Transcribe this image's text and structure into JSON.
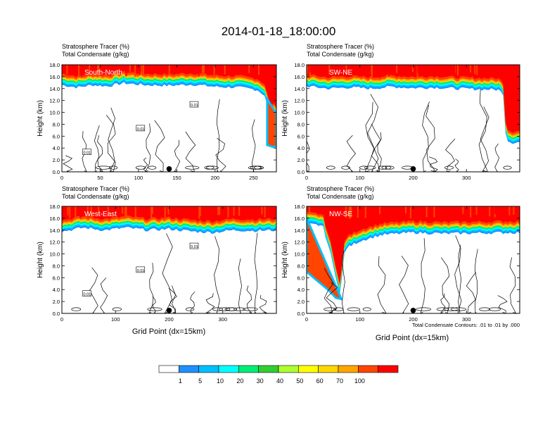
{
  "title": "2014-01-18_18:00:00",
  "field_label_1": "Stratosphere Tracer   (%)",
  "field_label_2": "Total Condensate   (g/kg)",
  "xlabel": "Grid Point (dx=15km)",
  "ylabel": "Height (km)",
  "contour_note": "Total Condensate Contours: .01 to .01 by .000",
  "colorbar": {
    "labels": [
      "1",
      "5",
      "10",
      "20",
      "30",
      "40",
      "50",
      "60",
      "70",
      "100"
    ],
    "colors": [
      "#ffffff",
      "#1e90ff",
      "#00bfff",
      "#00ffff",
      "#00ee76",
      "#32cd32",
      "#adff2f",
      "#ffff00",
      "#ffd700",
      "#ffa500",
      "#ff4500",
      "#ff0000"
    ]
  },
  "chart_data": [
    {
      "type": "heatmap",
      "panel_label": "South-North",
      "xlim": [
        0,
        280
      ],
      "ylim": [
        0,
        18
      ],
      "xticks": [
        0,
        50,
        100,
        150,
        200,
        250
      ],
      "yticks": [
        "0.0",
        "2.0",
        "4.0",
        "6.0",
        "8.0",
        "10.0",
        "12.0",
        "14.0",
        "16.0",
        "18.0"
      ],
      "marker_x": 140,
      "contour_labels": [
        "0.01",
        "0.01",
        "0.01"
      ],
      "tropopause_km": [
        [
          0,
          15.6
        ],
        [
          20,
          15.2
        ],
        [
          40,
          15.6
        ],
        [
          60,
          15.4
        ],
        [
          80,
          15.9
        ],
        [
          110,
          15.6
        ],
        [
          140,
          15.5
        ],
        [
          170,
          15.7
        ],
        [
          200,
          15.3
        ],
        [
          230,
          15.2
        ],
        [
          255,
          14.8
        ],
        [
          265,
          13.8
        ],
        [
          270,
          11.2
        ],
        [
          273,
          10.5
        ],
        [
          278,
          10.4
        ],
        [
          280,
          10.3
        ]
      ],
      "intrusion": [
        [
          268,
          10.5
        ],
        [
          268,
          4.5
        ],
        [
          275,
          4.2
        ],
        [
          280,
          4.3
        ]
      ]
    },
    {
      "type": "heatmap",
      "panel_label": "SW-NE",
      "xlim": [
        0,
        400
      ],
      "ylim": [
        0,
        18
      ],
      "xticks": [
        0,
        100,
        200,
        300
      ],
      "yticks": [
        "0.0",
        "2.0",
        "4.0",
        "6.0",
        "8.0",
        "10.0",
        "12.0",
        "14.0",
        "16.0",
        "18.0"
      ],
      "marker_x": 200,
      "contour_labels": [],
      "tropopause_km": [
        [
          0,
          15.4
        ],
        [
          40,
          15.0
        ],
        [
          80,
          15.2
        ],
        [
          120,
          15.0
        ],
        [
          160,
          15.3
        ],
        [
          200,
          15.1
        ],
        [
          240,
          15.2
        ],
        [
          280,
          15.0
        ],
        [
          320,
          14.9
        ],
        [
          360,
          14.8
        ],
        [
          370,
          14.0
        ],
        [
          372,
          10.0
        ],
        [
          374,
          6.5
        ],
        [
          385,
          5.9
        ],
        [
          400,
          6.0
        ]
      ],
      "intrusion": []
    },
    {
      "type": "heatmap",
      "panel_label": "West-East",
      "xlim": [
        0,
        400
      ],
      "ylim": [
        0,
        18
      ],
      "xticks": [
        0,
        100,
        200,
        300
      ],
      "yticks": [
        "0.0",
        "2.0",
        "4.0",
        "6.0",
        "8.0",
        "10.0",
        "12.0",
        "14.0",
        "16.0",
        "18.0"
      ],
      "marker_x": 200,
      "contour_labels": [
        "0.01",
        "0.01",
        "0.01"
      ],
      "tropopause_km": [
        [
          0,
          14.8
        ],
        [
          40,
          15.4
        ],
        [
          80,
          15.0
        ],
        [
          120,
          15.4
        ],
        [
          160,
          15.0
        ],
        [
          200,
          15.2
        ],
        [
          240,
          14.8
        ],
        [
          280,
          14.6
        ],
        [
          320,
          15.0
        ],
        [
          360,
          14.9
        ],
        [
          400,
          15.0
        ]
      ],
      "intrusion": []
    },
    {
      "type": "heatmap",
      "panel_label": "NW-SE",
      "xlim": [
        0,
        400
      ],
      "ylim": [
        0,
        18
      ],
      "xticks": [
        0,
        100,
        200,
        300
      ],
      "yticks": [
        "0.0",
        "2.0",
        "4.0",
        "6.0",
        "8.0",
        "10.0",
        "12.0",
        "14.0",
        "16.0",
        "18.0"
      ],
      "marker_x": 200,
      "contour_labels": [],
      "tropopause_km": [
        [
          0,
          16.0
        ],
        [
          30,
          15.8
        ],
        [
          45,
          11.0
        ],
        [
          50,
          9.0
        ],
        [
          58,
          6.0
        ],
        [
          65,
          3.0
        ],
        [
          68,
          10.5
        ],
        [
          75,
          12.0
        ],
        [
          100,
          13.2
        ],
        [
          140,
          14.2
        ],
        [
          200,
          14.6
        ],
        [
          260,
          14.4
        ],
        [
          320,
          14.5
        ],
        [
          400,
          14.6
        ]
      ],
      "intrusion": [
        [
          0,
          7.0
        ],
        [
          20,
          5.5
        ],
        [
          40,
          4.0
        ],
        [
          55,
          2.6
        ],
        [
          65,
          2.4
        ]
      ]
    }
  ]
}
